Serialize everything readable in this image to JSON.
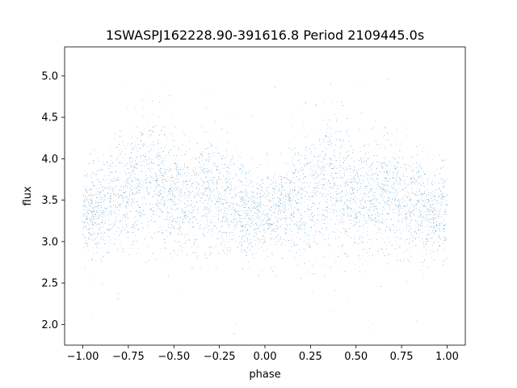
{
  "chart_data": {
    "type": "scatter",
    "title": "1SWASPJ162228.90-391616.8 Period 2109445.0s",
    "xlabel": "phase",
    "ylabel": "flux",
    "xlim": [
      -1.1,
      1.1
    ],
    "ylim": [
      1.75,
      5.35
    ],
    "x_ticks": [
      -1.0,
      -0.75,
      -0.5,
      -0.25,
      0.0,
      0.25,
      0.5,
      0.75,
      1.0
    ],
    "x_tick_labels": [
      "−1.00",
      "−0.75",
      "−0.50",
      "−0.25",
      "0.00",
      "0.25",
      "0.50",
      "0.75",
      "1.00"
    ],
    "y_ticks": [
      2.0,
      2.5,
      3.0,
      3.5,
      4.0,
      4.5,
      5.0
    ],
    "y_tick_labels": [
      "2.0",
      "2.5",
      "3.0",
      "3.5",
      "4.0",
      "4.5",
      "5.0"
    ],
    "grid": false,
    "marker_color": "#1f77b4",
    "marker_size": 0.5,
    "phased_light_curve": {
      "phase": [
        -1.0,
        -0.95,
        -0.9,
        -0.85,
        -0.8,
        -0.75,
        -0.7,
        -0.65,
        -0.6,
        -0.55,
        -0.5,
        -0.45,
        -0.4,
        -0.35,
        -0.3,
        -0.25,
        -0.2,
        -0.15,
        -0.1,
        -0.05,
        0.0,
        0.05,
        0.1,
        0.15,
        0.2,
        0.25,
        0.3,
        0.35,
        0.4,
        0.45,
        0.5,
        0.55,
        0.6,
        0.65,
        0.7,
        0.75,
        0.8,
        0.85,
        0.9,
        0.95,
        1.0
      ],
      "flux": [
        3.4,
        3.35,
        3.4,
        3.5,
        3.55,
        3.6,
        3.75,
        3.8,
        3.7,
        3.65,
        3.55,
        3.5,
        3.45,
        3.6,
        3.55,
        3.5,
        3.45,
        3.4,
        3.35,
        3.3,
        3.35,
        3.35,
        3.4,
        3.45,
        3.5,
        3.55,
        3.7,
        3.8,
        3.7,
        3.65,
        3.55,
        3.5,
        3.55,
        3.6,
        3.55,
        3.5,
        3.45,
        3.4,
        3.35,
        3.35,
        3.4
      ],
      "scatter": [
        0.28,
        0.25,
        0.25,
        0.3,
        0.32,
        0.35,
        0.4,
        0.4,
        0.4,
        0.38,
        0.35,
        0.35,
        0.32,
        0.38,
        0.35,
        0.32,
        0.3,
        0.3,
        0.28,
        0.25,
        0.28,
        0.28,
        0.28,
        0.3,
        0.32,
        0.35,
        0.38,
        0.4,
        0.4,
        0.38,
        0.35,
        0.35,
        0.35,
        0.38,
        0.35,
        0.32,
        0.3,
        0.3,
        0.28,
        0.25,
        0.28
      ]
    }
  }
}
